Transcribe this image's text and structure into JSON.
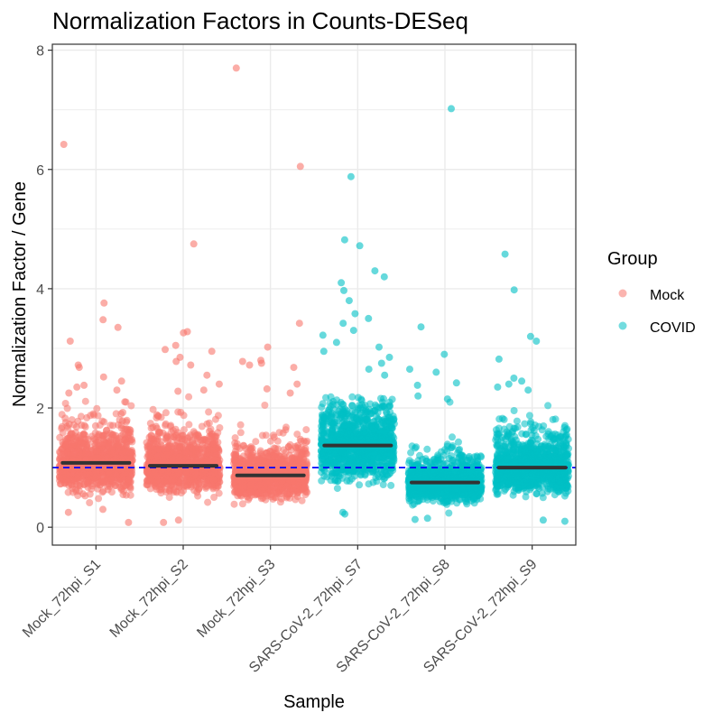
{
  "chart_data": {
    "type": "scatter",
    "title": "Normalization Factors in Counts-DESeq",
    "xlabel": "Sample",
    "ylabel": "Normalization Factor / Gene",
    "ylim": [
      -0.3,
      8.1
    ],
    "y_ticks": [
      0,
      2,
      4,
      6,
      8
    ],
    "grid": true,
    "reference_line": {
      "y": 1,
      "color": "#0000ff",
      "style": "dashed"
    },
    "categories": [
      "Mock_72hpi_S1",
      "Mock_72hpi_S2",
      "Mock_72hpi_S3",
      "SARS-CoV-2_72hpi_S7",
      "SARS-CoV-2_72hpi_S8",
      "SARS-CoV-2_72hpi_S9"
    ],
    "legend": {
      "title": "Group",
      "position": "right",
      "entries": [
        {
          "name": "Mock",
          "color": "#f8766d"
        },
        {
          "name": "COVID",
          "color": "#00bfc4"
        }
      ]
    },
    "series": [
      {
        "name": "Mock",
        "color": "#f8766d",
        "samples": [
          {
            "sample": "Mock_72hpi_S1",
            "median": 1.08,
            "outliers": [
              6.42,
              3.76,
              3.48,
              3.35,
              3.12,
              2.72,
              2.68,
              2.52,
              2.45,
              2.38,
              2.35,
              2.3,
              2.25,
              0.3,
              0.25,
              0.08
            ]
          },
          {
            "sample": "Mock_72hpi_S2",
            "median": 1.03,
            "outliers": [
              4.75,
              3.28,
              3.26,
              3.05,
              2.98,
              2.95,
              2.85,
              2.78,
              2.72,
              2.55,
              2.4,
              2.3,
              2.28,
              0.12,
              0.08
            ]
          },
          {
            "sample": "Mock_72hpi_S3",
            "median": 0.87,
            "outliers": [
              7.7,
              6.05,
              3.42,
              3.02,
              2.8,
              2.78,
              2.75,
              2.72,
              2.68,
              2.4,
              2.32,
              2.25
            ]
          }
        ]
      },
      {
        "name": "COVID",
        "color": "#00bfc4",
        "samples": [
          {
            "sample": "SARS-CoV-2_72hpi_S7",
            "median": 1.37,
            "outliers": [
              5.88,
              4.82,
              4.72,
              4.3,
              4.2,
              4.1,
              3.97,
              3.8,
              3.58,
              3.5,
              3.42,
              3.3,
              3.22,
              3.1,
              3.02,
              2.95,
              2.85,
              2.75,
              2.65,
              2.55,
              0.22,
              0.25
            ]
          },
          {
            "sample": "SARS-CoV-2_72hpi_S8",
            "median": 0.75,
            "outliers": [
              7.02,
              3.36,
              2.9,
              2.65,
              2.6,
              2.42,
              2.38,
              2.2,
              2.15,
              0.15,
              0.13
            ]
          },
          {
            "sample": "SARS-CoV-2_72hpi_S9",
            "median": 1.0,
            "outliers": [
              4.58,
              3.98,
              3.2,
              3.12,
              2.82,
              2.5,
              2.45,
              2.4,
              2.35,
              2.3,
              0.12,
              0.1
            ]
          }
        ]
      }
    ]
  }
}
